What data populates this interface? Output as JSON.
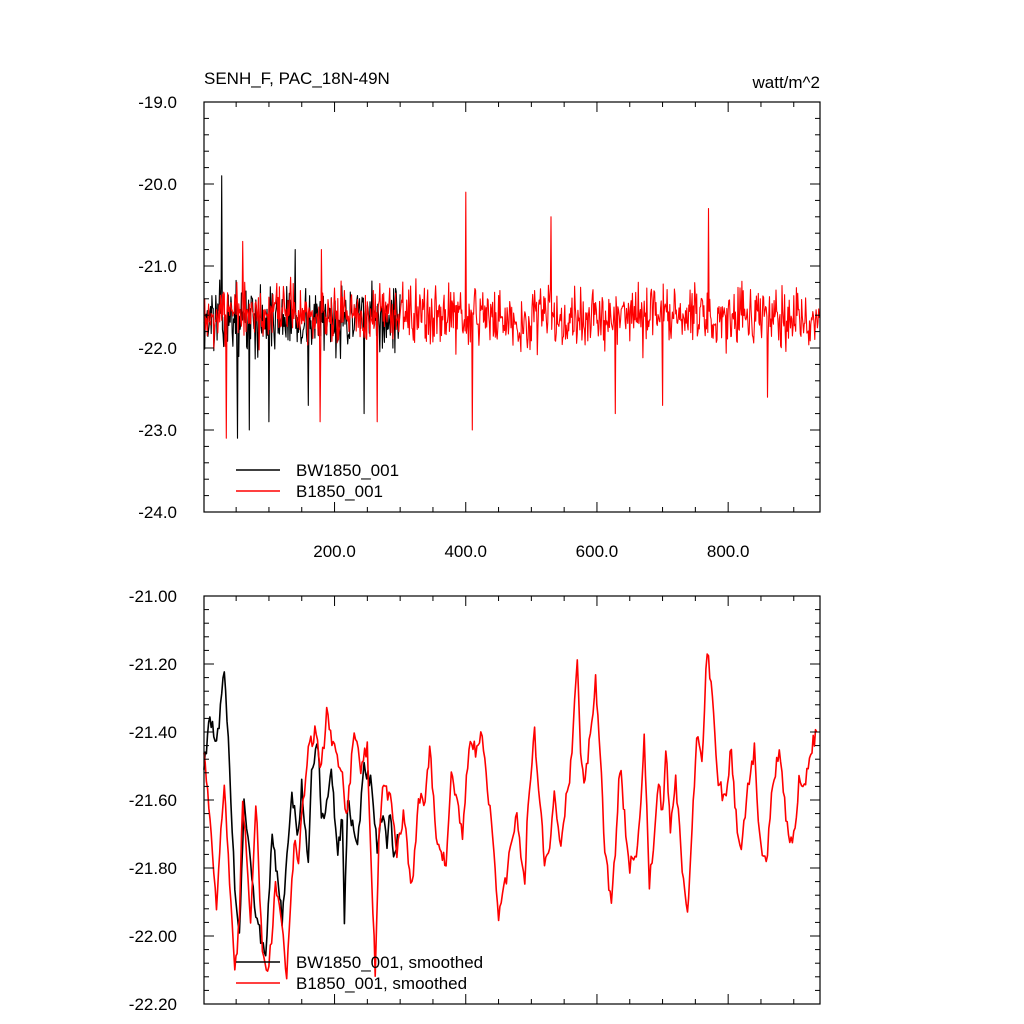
{
  "chart_data": [
    {
      "type": "line",
      "title": "SENH_F, PAC_18N-49N",
      "units": "watt/m^2",
      "xlim": [
        1,
        940
      ],
      "ylim": [
        -24.0,
        -19.0
      ],
      "yticks": [
        "-19.0",
        "-20.0",
        "-21.0",
        "-22.0",
        "-23.0",
        "-24.0"
      ],
      "ytick_values": [
        -19,
        -20,
        -21,
        -22,
        -23,
        -24
      ],
      "xticks": [
        "200.0",
        "400.0",
        "600.0",
        "800.0"
      ],
      "xtick_values": [
        200,
        400,
        600,
        800
      ],
      "legend_position": "bottom-left",
      "series": [
        {
          "name": "BW1850_001",
          "color": "#000000",
          "x_range": [
            1,
            300
          ],
          "mean": -21.65,
          "noise_amplitude": 0.42,
          "notable_points": [
            [
              28,
              -19.9
            ],
            [
              52,
              -23.1
            ],
            [
              70,
              -23.0
            ],
            [
              100,
              -22.9
            ],
            [
              140,
              -20.8
            ],
            [
              160,
              -22.7
            ],
            [
              245,
              -22.8
            ]
          ]
        },
        {
          "name": "B1850_001",
          "color": "#ff0000",
          "x_range": [
            1,
            940
          ],
          "mean": -21.62,
          "noise_amplitude": 0.4,
          "notable_points": [
            [
              35,
              -23.1
            ],
            [
              60,
              -20.7
            ],
            [
              178,
              -22.9
            ],
            [
              180,
              -20.8
            ],
            [
              265,
              -22.9
            ],
            [
              400,
              -20.1
            ],
            [
              410,
              -23.0
            ],
            [
              530,
              -20.4
            ],
            [
              628,
              -22.8
            ],
            [
              700,
              -22.7
            ],
            [
              770,
              -20.3
            ],
            [
              860,
              -22.6
            ]
          ]
        }
      ]
    },
    {
      "type": "line",
      "title": "",
      "xlim": [
        1,
        940
      ],
      "ylim": [
        -22.2,
        -21.0
      ],
      "yticks": [
        "-21.00",
        "-21.20",
        "-21.40",
        "-21.60",
        "-21.80",
        "-22.00",
        "-22.20"
      ],
      "ytick_values": [
        -21.0,
        -21.2,
        -21.4,
        -21.6,
        -21.8,
        -22.0,
        -22.2
      ],
      "xtick_values": [
        200,
        400,
        600,
        800
      ],
      "legend_position": "bottom-left",
      "series": [
        {
          "name": "BW1850_001, smoothed",
          "color": "#000000",
          "anchors": [
            [
              1,
              -21.5
            ],
            [
              10,
              -21.35
            ],
            [
              20,
              -21.45
            ],
            [
              28,
              -21.3
            ],
            [
              32,
              -21.23
            ],
            [
              40,
              -21.5
            ],
            [
              48,
              -21.85
            ],
            [
              55,
              -22.0
            ],
            [
              62,
              -21.6
            ],
            [
              70,
              -21.75
            ],
            [
              80,
              -21.95
            ],
            [
              95,
              -22.05
            ],
            [
              105,
              -21.7
            ],
            [
              120,
              -21.95
            ],
            [
              135,
              -21.6
            ],
            [
              145,
              -21.7
            ],
            [
              150,
              -21.55
            ],
            [
              160,
              -21.8
            ],
            [
              165,
              -21.5
            ],
            [
              175,
              -21.45
            ],
            [
              180,
              -21.65
            ],
            [
              190,
              -21.6
            ],
            [
              195,
              -21.5
            ],
            [
              200,
              -21.65
            ],
            [
              205,
              -21.75
            ],
            [
              212,
              -21.65
            ],
            [
              215,
              -21.95
            ],
            [
              220,
              -21.6
            ],
            [
              235,
              -21.75
            ],
            [
              245,
              -21.5
            ],
            [
              255,
              -21.55
            ],
            [
              265,
              -21.75
            ],
            [
              272,
              -21.65
            ],
            [
              280,
              -21.72
            ],
            [
              285,
              -21.62
            ],
            [
              290,
              -21.78
            ],
            [
              296,
              -21.7
            ]
          ]
        },
        {
          "name": "B1850_001, smoothed",
          "color": "#ff0000",
          "anchors": [
            [
              1,
              -21.45
            ],
            [
              12,
              -21.7
            ],
            [
              20,
              -21.9
            ],
            [
              25,
              -21.75
            ],
            [
              32,
              -21.55
            ],
            [
              40,
              -21.85
            ],
            [
              48,
              -22.12
            ],
            [
              55,
              -21.95
            ],
            [
              60,
              -21.6
            ],
            [
              66,
              -21.75
            ],
            [
              72,
              -21.95
            ],
            [
              80,
              -21.6
            ],
            [
              90,
              -22.05
            ],
            [
              100,
              -22.1
            ],
            [
              110,
              -21.85
            ],
            [
              120,
              -21.95
            ],
            [
              127,
              -22.12
            ],
            [
              135,
              -21.85
            ],
            [
              140,
              -21.7
            ],
            [
              145,
              -21.8
            ],
            [
              150,
              -21.65
            ],
            [
              160,
              -21.45
            ],
            [
              170,
              -21.4
            ],
            [
              180,
              -21.5
            ],
            [
              188,
              -21.35
            ],
            [
              200,
              -21.45
            ],
            [
              210,
              -21.5
            ],
            [
              218,
              -21.65
            ],
            [
              230,
              -21.4
            ],
            [
              240,
              -21.5
            ],
            [
              250,
              -21.45
            ],
            [
              255,
              -21.75
            ],
            [
              262,
              -22.1
            ],
            [
              268,
              -21.7
            ],
            [
              275,
              -21.55
            ],
            [
              285,
              -21.6
            ],
            [
              295,
              -21.75
            ],
            [
              305,
              -21.65
            ],
            [
              318,
              -21.85
            ],
            [
              328,
              -21.6
            ],
            [
              338,
              -21.6
            ],
            [
              345,
              -21.45
            ],
            [
              355,
              -21.7
            ],
            [
              370,
              -21.8
            ],
            [
              378,
              -21.5
            ],
            [
              385,
              -21.6
            ],
            [
              395,
              -21.7
            ],
            [
              405,
              -21.45
            ],
            [
              415,
              -21.45
            ],
            [
              425,
              -21.4
            ],
            [
              435,
              -21.6
            ],
            [
              443,
              -21.75
            ],
            [
              450,
              -21.95
            ],
            [
              460,
              -21.85
            ],
            [
              468,
              -21.75
            ],
            [
              478,
              -21.65
            ],
            [
              490,
              -21.85
            ],
            [
              495,
              -21.6
            ],
            [
              505,
              -21.4
            ],
            [
              515,
              -21.65
            ],
            [
              520,
              -21.8
            ],
            [
              528,
              -21.75
            ],
            [
              535,
              -21.55
            ],
            [
              545,
              -21.75
            ],
            [
              553,
              -21.6
            ],
            [
              560,
              -21.5
            ],
            [
              570,
              -21.2
            ],
            [
              575,
              -21.45
            ],
            [
              582,
              -21.55
            ],
            [
              590,
              -21.4
            ],
            [
              598,
              -21.25
            ],
            [
              605,
              -21.45
            ],
            [
              612,
              -21.75
            ],
            [
              622,
              -21.9
            ],
            [
              628,
              -21.75
            ],
            [
              635,
              -21.5
            ],
            [
              642,
              -21.65
            ],
            [
              650,
              -21.8
            ],
            [
              660,
              -21.75
            ],
            [
              667,
              -21.6
            ],
            [
              672,
              -21.4
            ],
            [
              680,
              -21.85
            ],
            [
              688,
              -21.7
            ],
            [
              694,
              -21.55
            ],
            [
              700,
              -21.65
            ],
            [
              705,
              -21.45
            ],
            [
              712,
              -21.7
            ],
            [
              720,
              -21.55
            ],
            [
              728,
              -21.75
            ],
            [
              738,
              -21.95
            ],
            [
              745,
              -21.7
            ],
            [
              752,
              -21.4
            ],
            [
              760,
              -21.5
            ],
            [
              768,
              -21.15
            ],
            [
              776,
              -21.3
            ],
            [
              785,
              -21.55
            ],
            [
              795,
              -21.6
            ],
            [
              805,
              -21.45
            ],
            [
              812,
              -21.65
            ],
            [
              820,
              -21.75
            ],
            [
              830,
              -21.55
            ],
            [
              840,
              -21.45
            ],
            [
              848,
              -21.7
            ],
            [
              858,
              -21.8
            ],
            [
              868,
              -21.55
            ],
            [
              878,
              -21.45
            ],
            [
              888,
              -21.65
            ],
            [
              898,
              -21.75
            ],
            [
              908,
              -21.55
            ],
            [
              918,
              -21.55
            ],
            [
              926,
              -21.45
            ],
            [
              935,
              -21.4
            ]
          ]
        }
      ]
    }
  ]
}
